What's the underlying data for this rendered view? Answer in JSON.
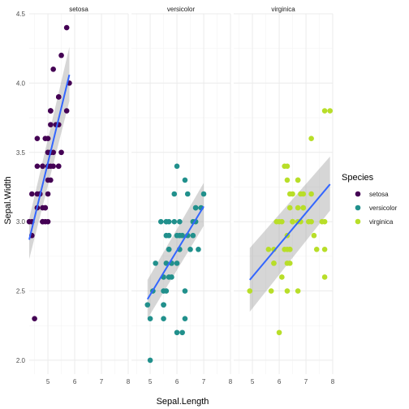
{
  "chart_data": {
    "type": "scatter",
    "facet_by": "Species",
    "facets": [
      "setosa",
      "versicolor",
      "virginica"
    ],
    "xlabel": "Sepal.Length",
    "ylabel": "Sepal.Width",
    "xlim": [
      4.3,
      8.0
    ],
    "ylim": [
      1.9,
      4.5
    ],
    "x_ticks": [
      5,
      6,
      7,
      8
    ],
    "y_ticks": [
      2.0,
      2.5,
      3.0,
      3.5,
      4.0,
      4.5
    ],
    "y_tick_labels": [
      "2.0",
      "2.5",
      "3.0",
      "3.5",
      "4.0",
      "4.5"
    ],
    "grid": true,
    "smoother": "lm",
    "smoother_color": "#3366FF",
    "legend": {
      "title": "Species",
      "position": "right",
      "entries": [
        {
          "label": "setosa",
          "color": "#440154"
        },
        {
          "label": "versicolor",
          "color": "#21908C"
        },
        {
          "label": "virginica",
          "color": "#B8DE29"
        }
      ]
    },
    "series": [
      {
        "name": "setosa",
        "color": "#440154",
        "fit": {
          "x": [
            4.3,
            5.8
          ],
          "y": [
            2.87,
            4.06
          ],
          "ci_low": [
            2.73,
            3.87
          ],
          "ci_high": [
            3.02,
            4.26
          ]
        },
        "points": [
          [
            5.1,
            3.5
          ],
          [
            4.9,
            3.0
          ],
          [
            4.7,
            3.2
          ],
          [
            4.6,
            3.1
          ],
          [
            5.0,
            3.6
          ],
          [
            5.4,
            3.9
          ],
          [
            4.6,
            3.4
          ],
          [
            5.0,
            3.4
          ],
          [
            4.4,
            2.9
          ],
          [
            4.9,
            3.1
          ],
          [
            5.4,
            3.7
          ],
          [
            4.8,
            3.4
          ],
          [
            4.8,
            3.0
          ],
          [
            4.3,
            3.0
          ],
          [
            5.8,
            4.0
          ],
          [
            5.7,
            4.4
          ],
          [
            5.4,
            3.9
          ],
          [
            5.1,
            3.5
          ],
          [
            5.7,
            3.8
          ],
          [
            5.1,
            3.8
          ],
          [
            5.4,
            3.4
          ],
          [
            5.1,
            3.7
          ],
          [
            4.6,
            3.6
          ],
          [
            5.1,
            3.3
          ],
          [
            4.8,
            3.4
          ],
          [
            5.0,
            3.0
          ],
          [
            5.0,
            3.4
          ],
          [
            5.2,
            3.5
          ],
          [
            5.2,
            3.4
          ],
          [
            4.7,
            3.2
          ],
          [
            4.8,
            3.1
          ],
          [
            5.4,
            3.4
          ],
          [
            5.2,
            4.1
          ],
          [
            5.5,
            4.2
          ],
          [
            4.9,
            3.1
          ],
          [
            5.0,
            3.2
          ],
          [
            5.5,
            3.5
          ],
          [
            4.9,
            3.6
          ],
          [
            4.4,
            3.0
          ],
          [
            5.1,
            3.4
          ],
          [
            5.0,
            3.5
          ],
          [
            4.5,
            2.3
          ],
          [
            4.4,
            3.2
          ],
          [
            5.0,
            3.5
          ],
          [
            5.1,
            3.8
          ],
          [
            4.8,
            3.0
          ],
          [
            5.1,
            3.8
          ],
          [
            4.6,
            3.2
          ],
          [
            5.3,
            3.7
          ],
          [
            5.0,
            3.3
          ]
        ]
      },
      {
        "name": "versicolor",
        "color": "#21908C",
        "fit": {
          "x": [
            4.9,
            7.0
          ],
          "y": [
            2.44,
            3.11
          ],
          "ci_low": [
            2.3,
            2.97
          ],
          "ci_high": [
            2.58,
            3.28
          ]
        },
        "points": [
          [
            7.0,
            3.2
          ],
          [
            6.4,
            3.2
          ],
          [
            6.9,
            3.1
          ],
          [
            5.5,
            2.3
          ],
          [
            6.5,
            2.8
          ],
          [
            5.7,
            2.8
          ],
          [
            6.3,
            3.3
          ],
          [
            4.9,
            2.4
          ],
          [
            6.6,
            2.9
          ],
          [
            5.2,
            2.7
          ],
          [
            5.0,
            2.0
          ],
          [
            5.9,
            3.0
          ],
          [
            6.0,
            2.2
          ],
          [
            6.1,
            2.9
          ],
          [
            5.6,
            2.9
          ],
          [
            6.7,
            3.1
          ],
          [
            5.6,
            3.0
          ],
          [
            5.8,
            2.7
          ],
          [
            6.2,
            2.2
          ],
          [
            5.6,
            2.5
          ],
          [
            5.9,
            3.2
          ],
          [
            6.1,
            2.8
          ],
          [
            6.3,
            2.5
          ],
          [
            6.1,
            2.8
          ],
          [
            6.4,
            2.9
          ],
          [
            6.6,
            3.0
          ],
          [
            6.8,
            2.8
          ],
          [
            6.7,
            3.0
          ],
          [
            6.0,
            2.9
          ],
          [
            5.7,
            2.6
          ],
          [
            5.5,
            2.4
          ],
          [
            5.5,
            2.4
          ],
          [
            5.8,
            2.7
          ],
          [
            6.0,
            2.7
          ],
          [
            5.4,
            3.0
          ],
          [
            6.0,
            3.4
          ],
          [
            6.7,
            3.1
          ],
          [
            6.3,
            2.3
          ],
          [
            5.6,
            3.0
          ],
          [
            5.5,
            2.5
          ],
          [
            5.5,
            2.6
          ],
          [
            6.1,
            3.0
          ],
          [
            5.8,
            2.6
          ],
          [
            5.0,
            2.3
          ],
          [
            5.6,
            2.7
          ],
          [
            5.7,
            3.0
          ],
          [
            5.7,
            2.9
          ],
          [
            6.2,
            2.9
          ],
          [
            5.1,
            2.5
          ],
          [
            5.7,
            2.8
          ]
        ]
      },
      {
        "name": "virginica",
        "color": "#B8DE29",
        "fit": {
          "x": [
            4.9,
            7.9
          ],
          "y": [
            2.58,
            3.27
          ],
          "ci_low": [
            2.35,
            3.08
          ],
          "ci_high": [
            2.81,
            3.47
          ]
        },
        "points": [
          [
            6.3,
            3.3
          ],
          [
            5.8,
            2.7
          ],
          [
            7.1,
            3.0
          ],
          [
            6.3,
            2.9
          ],
          [
            6.5,
            3.0
          ],
          [
            7.6,
            3.0
          ],
          [
            4.9,
            2.5
          ],
          [
            7.3,
            2.9
          ],
          [
            6.7,
            2.5
          ],
          [
            7.2,
            3.6
          ],
          [
            6.5,
            3.2
          ],
          [
            6.4,
            2.7
          ],
          [
            6.8,
            3.0
          ],
          [
            5.7,
            2.5
          ],
          [
            5.8,
            2.8
          ],
          [
            6.4,
            3.2
          ],
          [
            6.5,
            3.0
          ],
          [
            7.7,
            3.8
          ],
          [
            7.7,
            2.6
          ],
          [
            6.0,
            2.2
          ],
          [
            6.9,
            3.2
          ],
          [
            5.6,
            2.8
          ],
          [
            7.7,
            2.8
          ],
          [
            6.3,
            2.7
          ],
          [
            6.7,
            3.3
          ],
          [
            7.2,
            3.2
          ],
          [
            6.2,
            2.8
          ],
          [
            6.1,
            3.0
          ],
          [
            6.4,
            2.8
          ],
          [
            7.2,
            3.0
          ],
          [
            7.4,
            2.8
          ],
          [
            7.9,
            3.8
          ],
          [
            6.4,
            2.8
          ],
          [
            6.3,
            2.8
          ],
          [
            6.1,
            2.6
          ],
          [
            7.7,
            3.0
          ],
          [
            6.3,
            3.4
          ],
          [
            6.4,
            3.1
          ],
          [
            6.0,
            3.0
          ],
          [
            6.9,
            3.1
          ],
          [
            6.7,
            3.1
          ],
          [
            6.9,
            3.1
          ],
          [
            5.8,
            2.7
          ],
          [
            6.8,
            3.2
          ],
          [
            6.7,
            3.3
          ],
          [
            6.7,
            3.0
          ],
          [
            6.3,
            2.5
          ],
          [
            6.5,
            3.0
          ],
          [
            6.2,
            3.4
          ],
          [
            5.9,
            3.0
          ]
        ]
      }
    ]
  }
}
